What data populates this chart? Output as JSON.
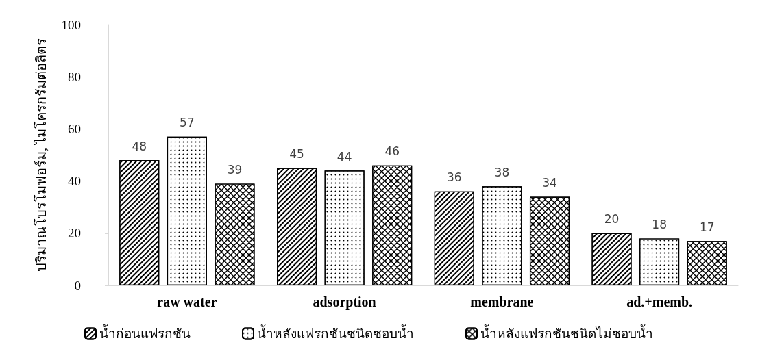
{
  "chart_data": {
    "type": "bar",
    "ylabel": "ปริมาณโบรโมฟอร์ม, ไมโครกรัมต่อลิตร",
    "categories": [
      "raw water",
      "adsorption",
      "membrane",
      "ad.+memb."
    ],
    "series": [
      {
        "name": "น้ำก่อนแฟรกชัน",
        "color": "#000000",
        "values": [
          48,
          45,
          36,
          20
        ]
      },
      {
        "name": "น้ำหลังแฟรกชันชนิดชอบน้ำ",
        "color": "#000000",
        "values": [
          57,
          44,
          38,
          18
        ]
      },
      {
        "name": "น้ำหลังแฟรกชันชนิดไม่ชอบน้ำ",
        "color": "#000000",
        "values": [
          39,
          46,
          34,
          17
        ]
      }
    ],
    "ylim": [
      0,
      100
    ],
    "yticks": [
      0,
      20,
      40,
      60,
      80,
      100
    ],
    "grid": false,
    "legend": "bottom",
    "data_labels": true
  }
}
